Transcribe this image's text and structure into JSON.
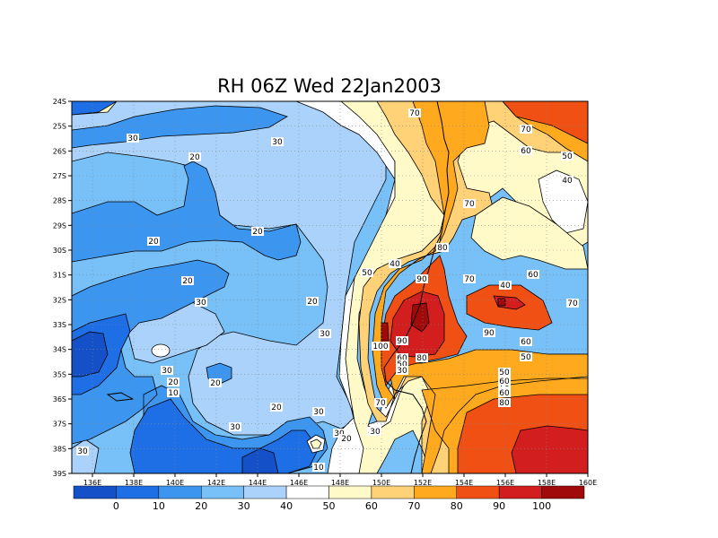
{
  "title": "RH 06Z Wed 22Jan2003",
  "map": {
    "lat_labels": [
      "24S",
      "25S",
      "26S",
      "27S",
      "28S",
      "29S",
      "30S",
      "31S",
      "32S",
      "33S",
      "34S",
      "35S",
      "36S",
      "37S",
      "38S",
      "39S"
    ],
    "lon_labels": [
      "136E",
      "138E",
      "140E",
      "142E",
      "144E",
      "146E",
      "148E",
      "150E",
      "152E",
      "154E",
      "156E",
      "158E",
      "160E"
    ],
    "grid": "dotted"
  },
  "colorbar": {
    "labels": [
      "0",
      "10",
      "20",
      "30",
      "40",
      "50",
      "60",
      "70",
      "80",
      "90",
      "100"
    ],
    "colors": [
      "#1450c8",
      "#1e6ee6",
      "#3c96f0",
      "#78c0f8",
      "#aad2fa",
      "#ffffff",
      "#fffac8",
      "#ffd278",
      "#ffaa1e",
      "#f05014",
      "#d21e1e",
      "#a00a0a"
    ]
  },
  "contour_labels": [
    {
      "text": "70"
    },
    {
      "text": "70"
    },
    {
      "text": "60"
    },
    {
      "text": "50"
    },
    {
      "text": "40"
    },
    {
      "text": "60"
    },
    {
      "text": "30"
    },
    {
      "text": "30"
    },
    {
      "text": "20"
    },
    {
      "text": "20"
    },
    {
      "text": "20"
    },
    {
      "text": "20"
    },
    {
      "text": "20"
    },
    {
      "text": "30"
    },
    {
      "text": "30"
    },
    {
      "text": "30"
    },
    {
      "text": "20"
    },
    {
      "text": "10"
    },
    {
      "text": "20"
    },
    {
      "text": "30"
    },
    {
      "text": "20"
    },
    {
      "text": "30"
    },
    {
      "text": "30"
    },
    {
      "text": "20"
    },
    {
      "text": "40"
    },
    {
      "text": "10"
    },
    {
      "text": "30"
    },
    {
      "text": "50"
    },
    {
      "text": "40"
    },
    {
      "text": "80"
    },
    {
      "text": "90"
    },
    {
      "text": "100"
    },
    {
      "text": "90"
    },
    {
      "text": "80"
    },
    {
      "text": "60"
    },
    {
      "text": "50"
    },
    {
      "text": "30"
    },
    {
      "text": "70"
    },
    {
      "text": "40"
    },
    {
      "text": "70"
    },
    {
      "text": "90"
    },
    {
      "text": "60"
    },
    {
      "text": "70"
    },
    {
      "text": "70"
    },
    {
      "text": "60"
    },
    {
      "text": "50"
    },
    {
      "text": "50"
    },
    {
      "text": "60"
    },
    {
      "text": "70"
    },
    {
      "text": "80"
    },
    {
      "text": "30"
    }
  ]
}
